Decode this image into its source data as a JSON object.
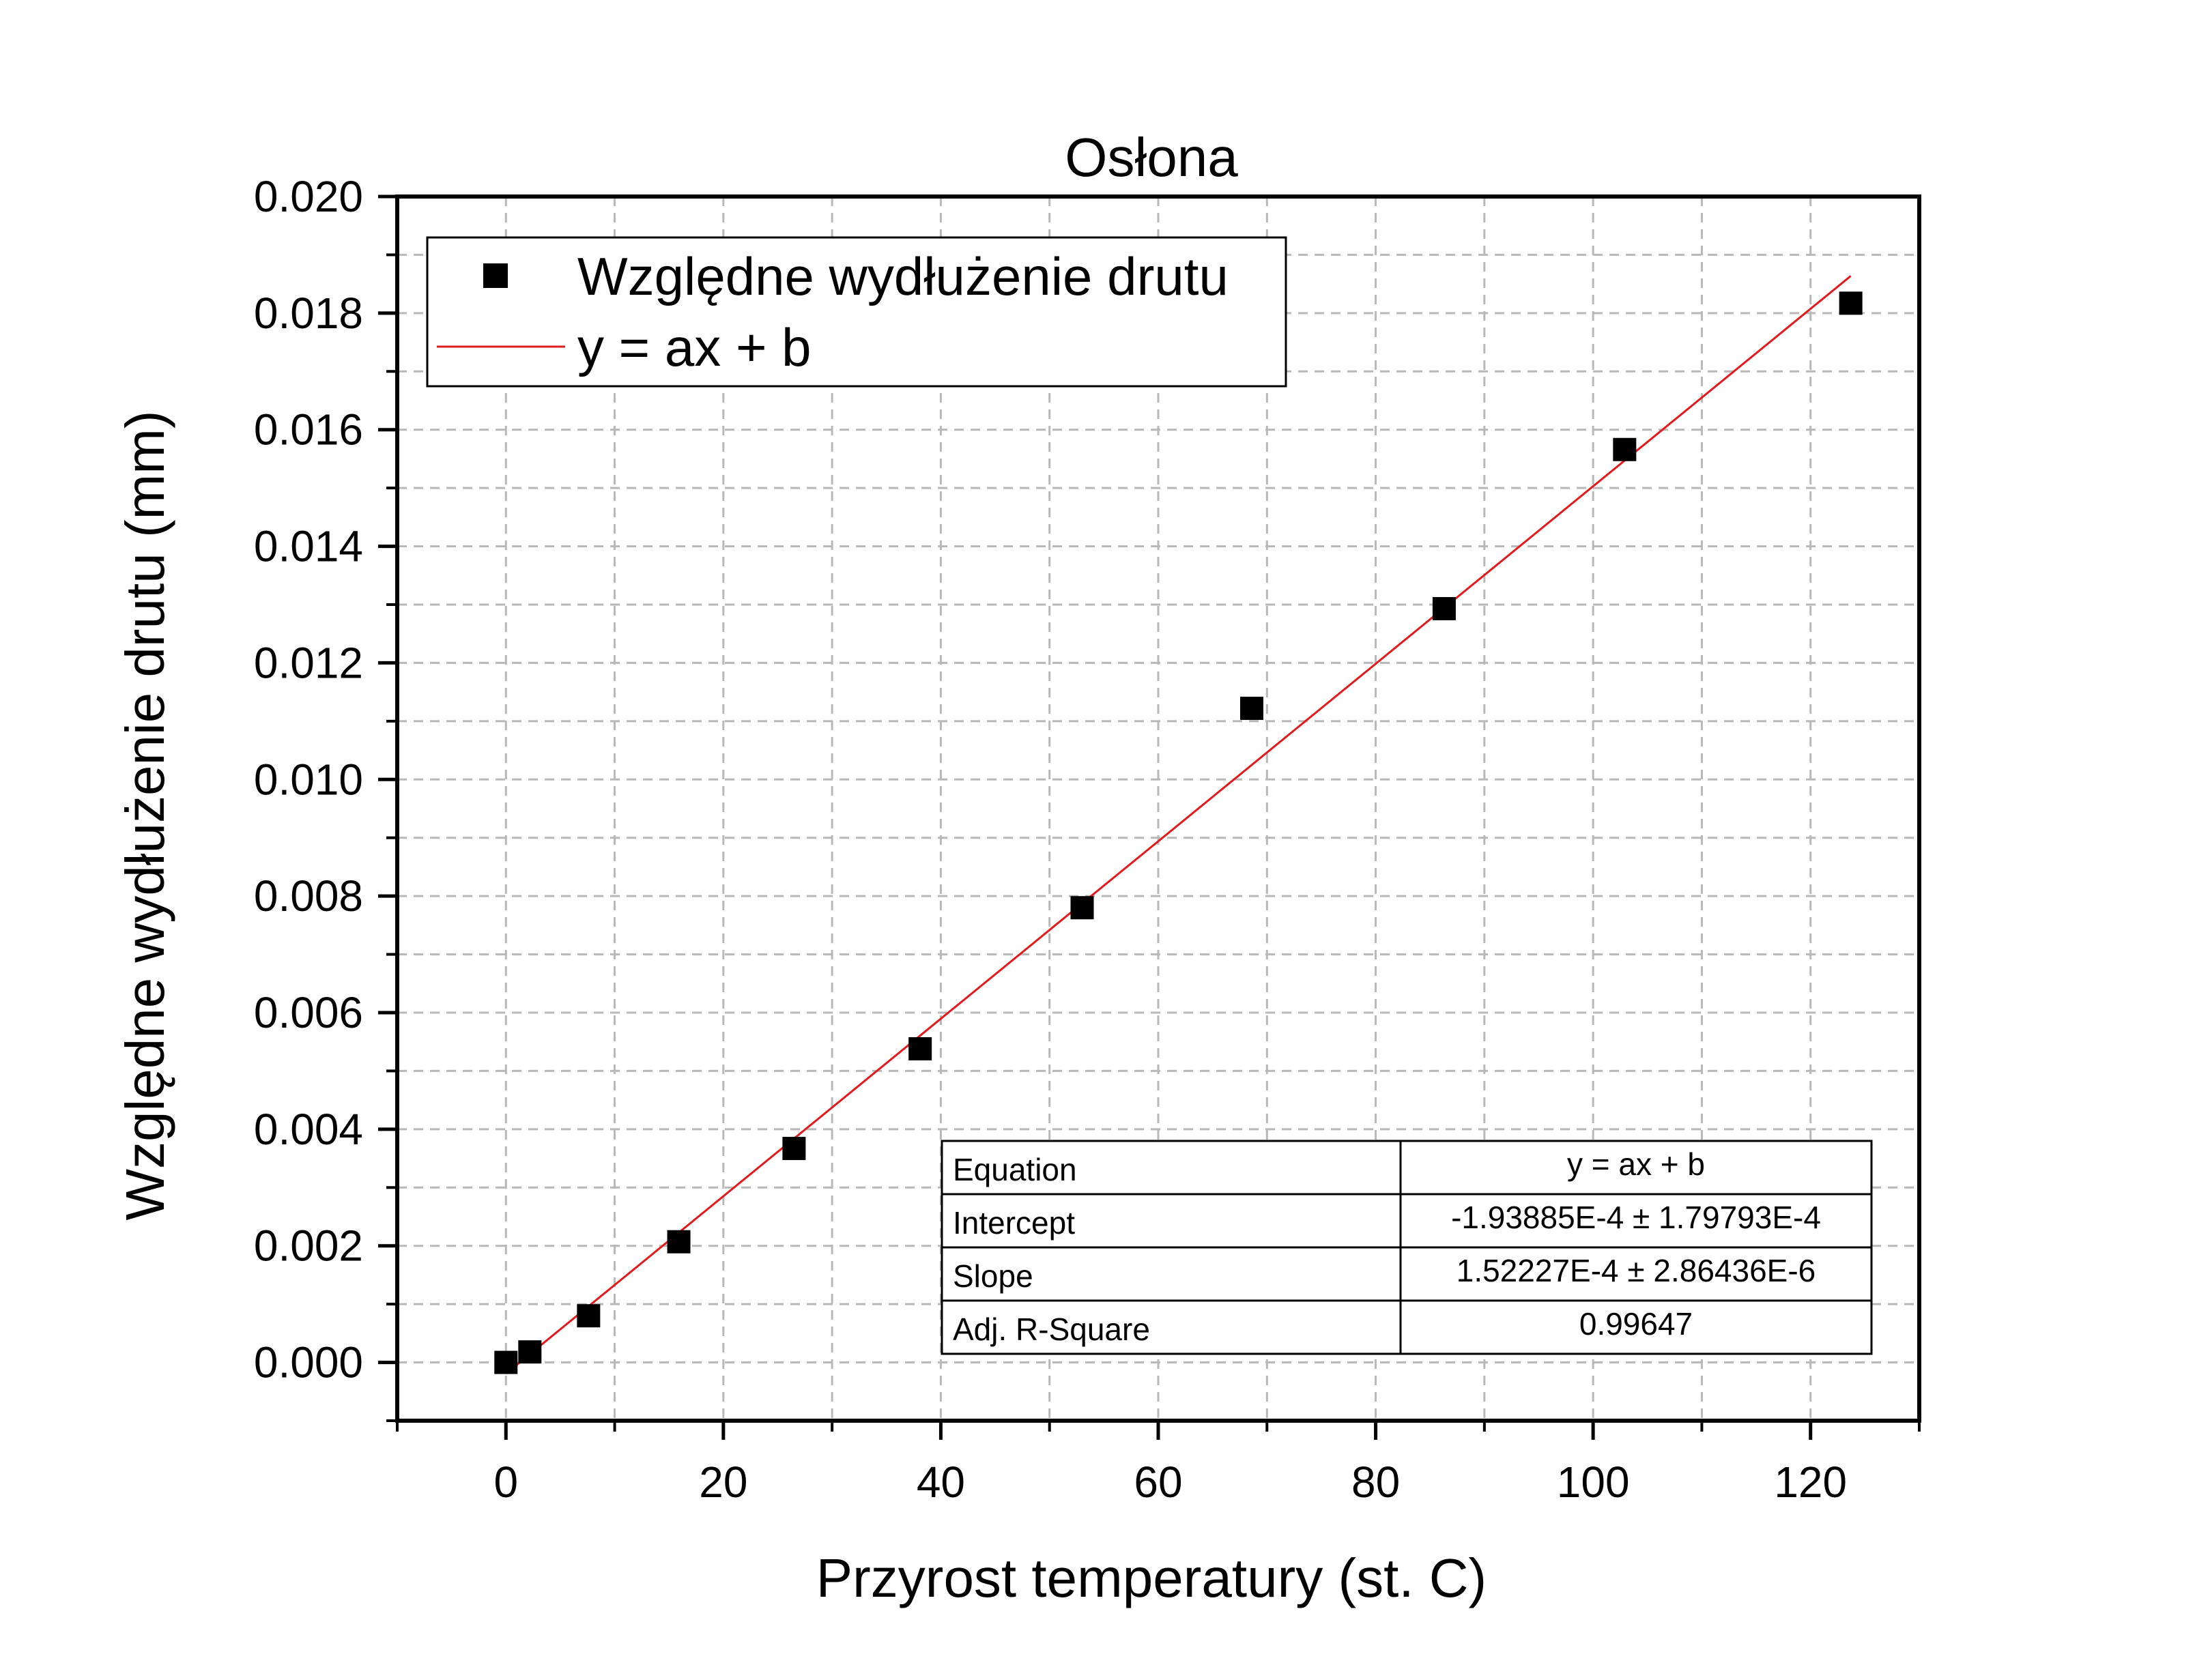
{
  "chart_data": {
    "type": "scatter",
    "title": "Osłona",
    "xlabel": "Przyrost temperatury (st. C)",
    "ylabel": "Względne wydłużenie drutu (mm)",
    "xlim": [
      -10,
      130
    ],
    "ylim": [
      -0.001,
      0.02
    ],
    "x_ticks": [
      0,
      20,
      40,
      60,
      80,
      100,
      120
    ],
    "y_ticks": [
      0.0,
      0.002,
      0.004,
      0.006,
      0.008,
      0.01,
      0.012,
      0.014,
      0.016,
      0.018,
      0.02
    ],
    "x_tick_labels": [
      "0",
      "20",
      "40",
      "60",
      "80",
      "100",
      "120"
    ],
    "y_tick_labels": [
      "0.000",
      "0.002",
      "0.004",
      "0.006",
      "0.008",
      "0.010",
      "0.012",
      "0.014",
      "0.016",
      "0.018",
      "0.020"
    ],
    "grid": true,
    "legend_position": "top-left",
    "series": [
      {
        "name": "Względne wydłużenie drutu",
        "marker": "square",
        "color": "#000000",
        "x": [
          0.0,
          2.2,
          7.6,
          15.9,
          26.5,
          38.1,
          53.0,
          68.6,
          86.3,
          102.9,
          123.7
        ],
        "y": [
          0.0,
          0.00018,
          0.0008,
          0.00207,
          0.00367,
          0.00538,
          0.0078,
          0.01122,
          0.01293,
          0.01566,
          0.01817
        ]
      }
    ],
    "fit": {
      "name": "y = ax + b",
      "color": "#e31a1c",
      "intercept": -0.000193885,
      "slope": 0.000152227,
      "x_range": [
        0,
        123.7
      ]
    },
    "fit_table": {
      "rows": [
        [
          "Equation",
          "y = ax + b"
        ],
        [
          "Intercept",
          "-1.93885E-4 ± 1.79793E-4"
        ],
        [
          "Slope",
          "1.52227E-4 ± 2.86436E-6"
        ],
        [
          "Adj. R-Square",
          "0.99647"
        ]
      ]
    }
  }
}
